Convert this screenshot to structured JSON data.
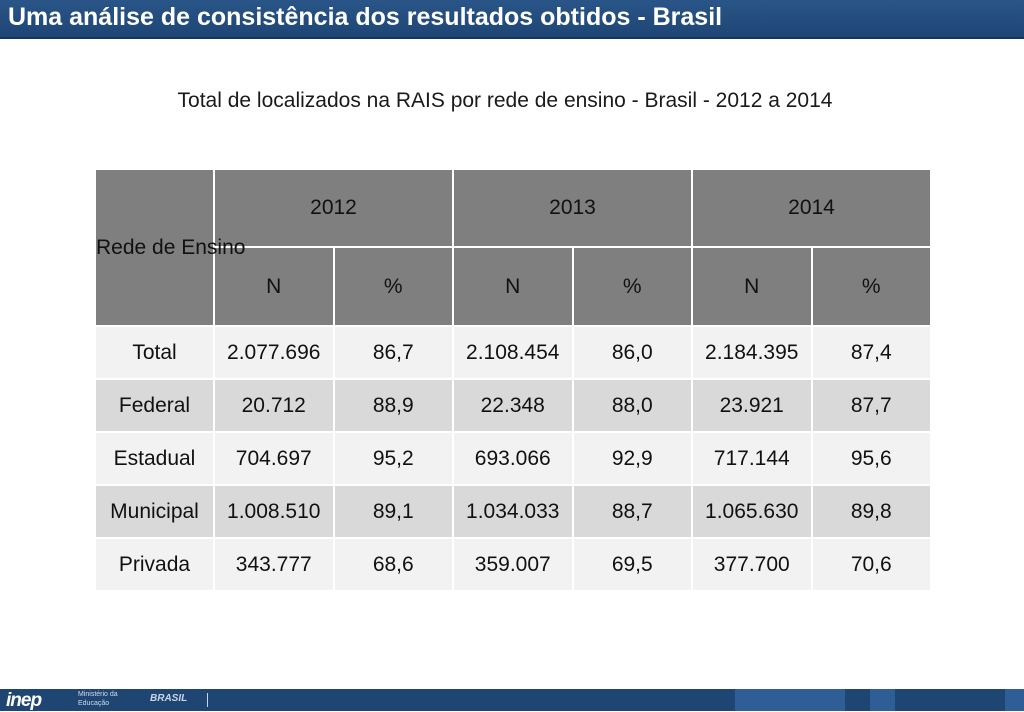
{
  "header": {
    "title": "Uma análise de consistência dos resultados obtidos - Brasil"
  },
  "subtitle": "Total de localizados na RAIS por rede de ensino - Brasil - 2012 a 2014",
  "table": {
    "corner_label": "Rede de Ensino",
    "years": [
      "2012",
      "2013",
      "2014"
    ],
    "subcols": [
      "N",
      "%",
      "N",
      "%",
      "N",
      "%"
    ],
    "rows": [
      {
        "label": "Total",
        "cells": [
          "2.077.696",
          "86,7",
          "2.108.454",
          "86,0",
          "2.184.395",
          "87,4"
        ]
      },
      {
        "label": "Federal",
        "cells": [
          "20.712",
          "88,9",
          "22.348",
          "88,0",
          "23.921",
          "87,7"
        ]
      },
      {
        "label": "Estadual",
        "cells": [
          "704.697",
          "95,2",
          "693.066",
          "92,9",
          "717.144",
          "95,6"
        ]
      },
      {
        "label": "Municipal",
        "cells": [
          "1.008.510",
          "89,1",
          "1.034.033",
          "88,7",
          "1.065.630",
          "89,8"
        ]
      },
      {
        "label": "Privada",
        "cells": [
          "343.777",
          "68,6",
          "359.007",
          "69,5",
          "377.700",
          "70,6"
        ]
      }
    ]
  },
  "footer": {
    "logo_text": "inep",
    "ministerio_line1": "Ministério da",
    "ministerio_line2": "Educação",
    "brasil_logo_text": "BRASIL"
  },
  "colors": {
    "header_bg": "#1e4675",
    "table_header_bg": "#7f7f7f",
    "row_light": "#f2f2f2",
    "row_dark": "#d9d9d9",
    "footer_bg": "#1f4572"
  }
}
